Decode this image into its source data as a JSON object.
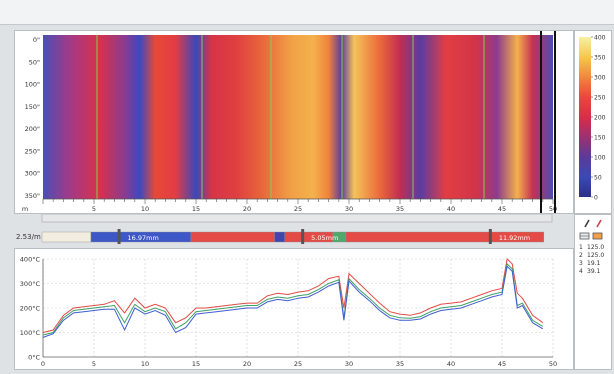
{
  "heatmap": {
    "y_ticks": [
      "0\"",
      "50\"",
      "100\"",
      "150\"",
      "200\"",
      "250\"",
      "300\"",
      "350\""
    ],
    "x_ticks": [
      "m",
      "5",
      "10",
      "15",
      "20",
      "25",
      "30",
      "35",
      "40",
      "45",
      "50"
    ]
  },
  "colorbar": {
    "ticks": [
      "400",
      "350",
      "300",
      "250",
      "200",
      "150",
      "100",
      "50",
      "0"
    ],
    "colors": [
      "#f7f0a2",
      "#f8c74c",
      "#f2873b",
      "#e9483b",
      "#d42f48",
      "#9f2f72",
      "#5b3a9b",
      "#3b49b8",
      "#2b2f8a"
    ]
  },
  "status_bar": {
    "row_label": "2.53/m",
    "segments": [
      {
        "start": 0,
        "end": 4.8,
        "color": "#f3ede0"
      },
      {
        "start": 4.8,
        "end": 14.6,
        "color": "#3d58c6"
      },
      {
        "start": 14.6,
        "end": 22.8,
        "color": "#e44a46"
      },
      {
        "start": 22.8,
        "end": 23.8,
        "color": "#4046b0"
      },
      {
        "start": 23.8,
        "end": 28.5,
        "color": "#e44a46"
      },
      {
        "start": 28.5,
        "end": 29.8,
        "color": "#4ea96b"
      },
      {
        "start": 29.8,
        "end": 49.2,
        "color": "#e44a46"
      }
    ],
    "labels": [
      {
        "text": "16.97mm",
        "at": 7.8
      },
      {
        "text": "5.05mm",
        "at": 25.8
      },
      {
        "text": "11.92mm",
        "at": 44.2
      }
    ]
  },
  "chart_data": {
    "type": "line",
    "y_tick_labels": [
      "400°C",
      "300°C",
      "200°C",
      "100°C",
      "0°C"
    ],
    "x_tick_labels": [
      "0",
      "5",
      "10",
      "15",
      "20",
      "25",
      "30",
      "35",
      "40",
      "45",
      "50"
    ],
    "xlim": [
      0,
      50
    ],
    "ylim": [
      0,
      400
    ],
    "grid": true,
    "x": [
      0,
      1,
      2,
      3,
      4,
      5,
      6,
      7,
      8,
      9,
      10,
      11,
      12,
      13,
      14,
      15,
      16,
      17,
      18,
      19,
      20,
      21,
      22,
      23,
      24,
      25,
      26,
      27,
      28,
      29,
      29.5,
      30,
      31,
      32,
      33,
      34,
      35,
      36,
      37,
      38,
      39,
      40,
      41,
      42,
      43,
      44,
      45,
      45.5,
      46,
      46.5,
      47,
      48,
      49
    ],
    "series": [
      {
        "color": "#e24a44",
        "values": [
          100,
          110,
          170,
          200,
          205,
          210,
          215,
          230,
          180,
          240,
          200,
          215,
          200,
          140,
          160,
          200,
          200,
          205,
          210,
          215,
          220,
          220,
          250,
          260,
          255,
          265,
          270,
          290,
          320,
          330,
          200,
          340,
          300,
          260,
          220,
          185,
          175,
          170,
          180,
          200,
          215,
          220,
          225,
          240,
          255,
          270,
          280,
          400,
          380,
          260,
          240,
          170,
          140
        ]
      },
      {
        "color": "#3fa065",
        "values": [
          90,
          100,
          160,
          190,
          195,
          200,
          205,
          210,
          140,
          215,
          185,
          200,
          185,
          115,
          140,
          185,
          190,
          195,
          200,
          205,
          210,
          210,
          235,
          245,
          240,
          250,
          255,
          275,
          300,
          315,
          160,
          320,
          275,
          240,
          200,
          170,
          160,
          158,
          165,
          185,
          200,
          205,
          210,
          225,
          240,
          255,
          265,
          380,
          360,
          210,
          220,
          150,
          125
        ]
      },
      {
        "color": "#3f5dd1",
        "values": [
          80,
          95,
          150,
          180,
          185,
          190,
          195,
          195,
          110,
          200,
          175,
          190,
          170,
          100,
          120,
          175,
          180,
          185,
          190,
          195,
          200,
          200,
          225,
          235,
          230,
          240,
          245,
          265,
          290,
          305,
          150,
          310,
          265,
          230,
          190,
          160,
          150,
          150,
          155,
          175,
          190,
          195,
          200,
          215,
          230,
          245,
          255,
          370,
          350,
          200,
          210,
          140,
          115
        ]
      }
    ]
  },
  "side_panel": {
    "legend": [
      {
        "index": "1",
        "value": "125.0"
      },
      {
        "index": "2",
        "value": "125.0"
      },
      {
        "index": "3",
        "value": "19.1"
      },
      {
        "index": "4",
        "value": "39.1"
      }
    ]
  }
}
